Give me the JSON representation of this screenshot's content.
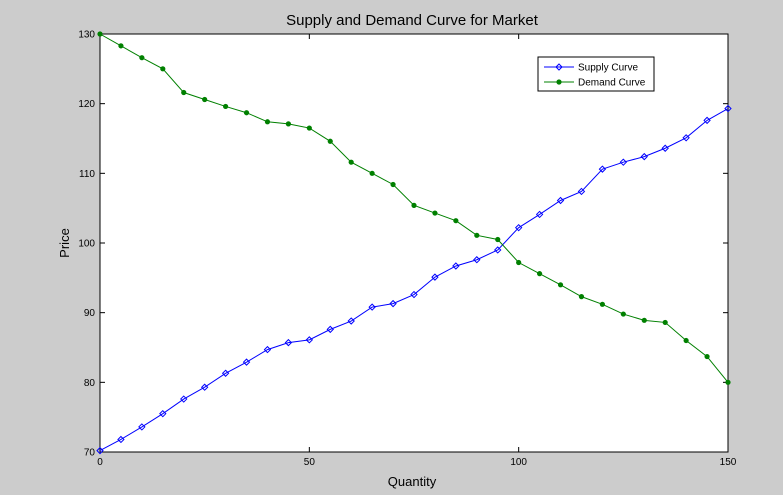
{
  "chart_data": {
    "type": "line",
    "title": "Supply and Demand Curve for Market",
    "xlabel": "Quantity",
    "ylabel": "Price",
    "xlim": [
      0,
      150
    ],
    "ylim": [
      70,
      130
    ],
    "xticks": [
      0,
      50,
      100,
      150
    ],
    "yticks": [
      70,
      80,
      90,
      100,
      110,
      120,
      130
    ],
    "xtick_labels": [
      "0",
      "50",
      "100",
      "150"
    ],
    "ytick_labels": [
      "70",
      "80",
      "90",
      "100",
      "110",
      "120",
      "130"
    ],
    "grid": false,
    "legend_position": "top-right",
    "series": [
      {
        "name": "Supply Curve",
        "color": "#0000ff",
        "marker": "diamond-open",
        "points": [
          [
            0,
            70.2
          ],
          [
            5,
            71.8
          ],
          [
            10,
            73.6
          ],
          [
            15,
            75.5
          ],
          [
            20,
            77.6
          ],
          [
            25,
            79.3
          ],
          [
            30,
            81.3
          ],
          [
            35,
            82.9
          ],
          [
            40,
            84.7
          ],
          [
            45,
            85.7
          ],
          [
            50,
            86.1
          ],
          [
            55,
            87.6
          ],
          [
            60,
            88.8
          ],
          [
            65,
            90.8
          ],
          [
            70,
            91.3
          ],
          [
            75,
            92.6
          ],
          [
            80,
            95.1
          ],
          [
            85,
            96.7
          ],
          [
            90,
            97.6
          ],
          [
            95,
            99.0
          ],
          [
            100,
            102.2
          ],
          [
            105,
            104.1
          ],
          [
            110,
            106.1
          ],
          [
            115,
            107.4
          ],
          [
            120,
            110.6
          ],
          [
            125,
            111.6
          ],
          [
            130,
            112.4
          ],
          [
            135,
            113.6
          ],
          [
            140,
            115.1
          ],
          [
            145,
            117.6
          ],
          [
            150,
            119.3
          ]
        ]
      },
      {
        "name": "Demand Curve",
        "color": "#008000",
        "marker": "dot",
        "points": [
          [
            0,
            130.0
          ],
          [
            5,
            128.3
          ],
          [
            10,
            126.6
          ],
          [
            15,
            125.0
          ],
          [
            20,
            121.6
          ],
          [
            25,
            120.6
          ],
          [
            30,
            119.6
          ],
          [
            35,
            118.7
          ],
          [
            40,
            117.4
          ],
          [
            45,
            117.1
          ],
          [
            50,
            116.5
          ],
          [
            55,
            114.6
          ],
          [
            60,
            111.6
          ],
          [
            65,
            110.0
          ],
          [
            70,
            108.4
          ],
          [
            75,
            105.4
          ],
          [
            80,
            104.3
          ],
          [
            85,
            103.2
          ],
          [
            90,
            101.1
          ],
          [
            95,
            100.5
          ],
          [
            100,
            97.2
          ],
          [
            105,
            95.6
          ],
          [
            110,
            94.0
          ],
          [
            115,
            92.3
          ],
          [
            120,
            91.2
          ],
          [
            125,
            89.8
          ],
          [
            130,
            88.9
          ],
          [
            135,
            88.6
          ],
          [
            140,
            86.0
          ],
          [
            145,
            83.7
          ],
          [
            150,
            80.0
          ]
        ]
      }
    ]
  }
}
